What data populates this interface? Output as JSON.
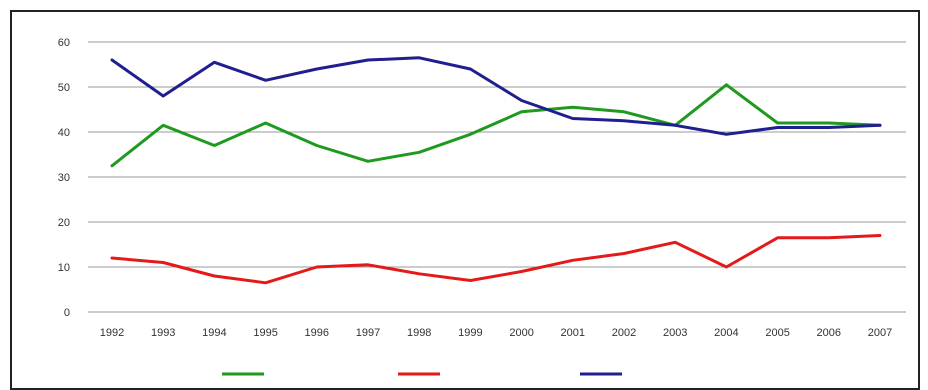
{
  "chart_data": {
    "type": "line",
    "title": "",
    "xlabel": "",
    "ylabel": "",
    "categories": [
      "1992",
      "1993",
      "1994",
      "1995",
      "1996",
      "1997",
      "1998",
      "1999",
      "2000",
      "2001",
      "2002",
      "2003",
      "2004",
      "2005",
      "2006",
      "2007"
    ],
    "x_tick_labels": [
      "1992",
      "1993",
      "1994",
      "1995",
      "1996",
      "1997",
      "1998",
      "1999",
      "2000",
      "2001",
      "2002",
      "2003",
      "2004",
      "2005",
      "2006",
      "2007"
    ],
    "y_ticks": [
      "0",
      "10",
      "20",
      "30",
      "40",
      "50",
      "60"
    ],
    "ylim": [
      0,
      60
    ],
    "grid": "horizontal",
    "legend_position": "bottom",
    "series": [
      {
        "name": "",
        "color": "#1f9a1f",
        "values": [
          32.5,
          41.5,
          37,
          42,
          37,
          33.5,
          35.5,
          39.5,
          44.5,
          45.5,
          44.5,
          41.5,
          50.5,
          42,
          42,
          41.5
        ]
      },
      {
        "name": "",
        "color": "#e41a1a",
        "values": [
          12,
          11,
          8,
          6.5,
          10,
          10.5,
          8.5,
          7,
          9,
          11.5,
          13,
          15.5,
          10,
          16.5,
          16.5,
          17
        ]
      },
      {
        "name": "",
        "color": "#1f1f8f",
        "values": [
          56,
          48,
          55.5,
          51.5,
          54,
          56,
          56.5,
          54,
          47,
          43,
          42.5,
          41.5,
          39.5,
          41,
          41,
          41.5
        ]
      }
    ]
  }
}
